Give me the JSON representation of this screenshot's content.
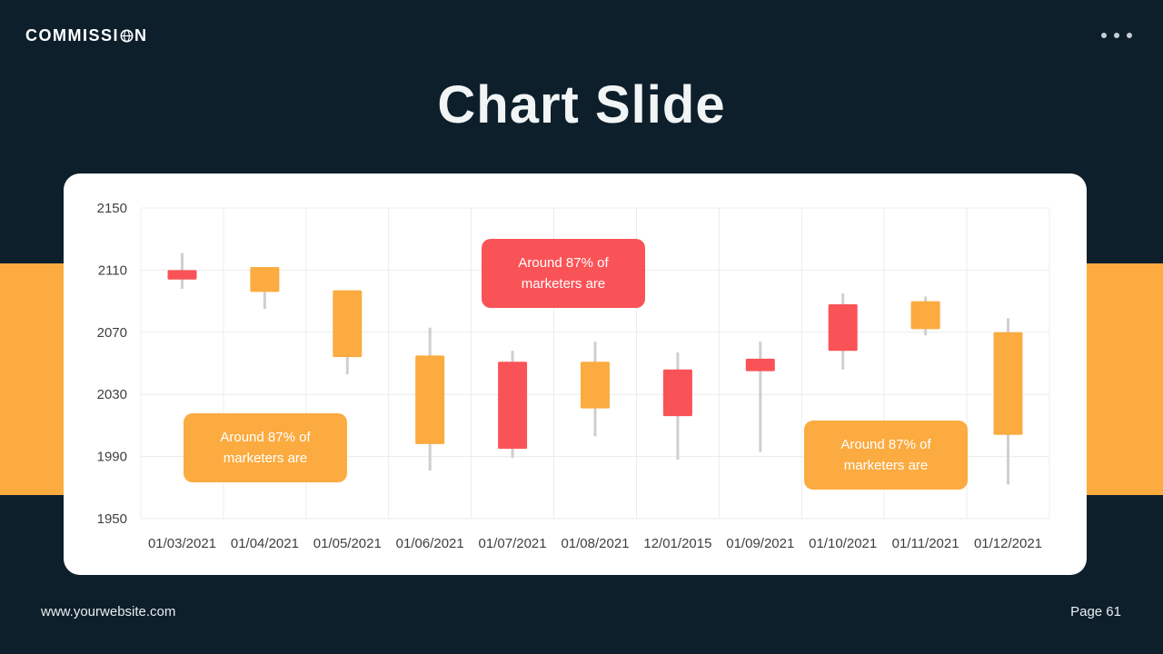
{
  "header": {
    "logo_prefix": "COMMISSI",
    "logo_suffix": "N",
    "menu_icon": "more-options-dots"
  },
  "slide": {
    "title": "Chart Slide"
  },
  "footer": {
    "website": "www.yourwebsite.com",
    "page_label": "Page 61"
  },
  "colors": {
    "background": "#0d1f2b",
    "accent_orange": "#fbab40",
    "accent_red": "#fa5357",
    "card": "#ffffff",
    "wick_gray": "#cfcfcf",
    "grid_gray": "#ececec"
  },
  "callouts": {
    "top": {
      "line1": "Around 87% of",
      "line2": "marketers are"
    },
    "left": {
      "line1": "Around 87% of",
      "line2": "marketers are"
    },
    "right": {
      "line1": "Around 87% of",
      "line2": "marketers are"
    }
  },
  "chart_data": {
    "type": "candlestick",
    "title": "",
    "xlabel": "",
    "ylabel": "",
    "grid": true,
    "legend": false,
    "ylim": [
      1950,
      2150
    ],
    "yticks": [
      2150,
      2110,
      2070,
      2030,
      1990,
      1950
    ],
    "categories": [
      "01/03/2021",
      "01/04/2021",
      "01/05/2021",
      "01/06/2021",
      "01/07/2021",
      "01/08/2021",
      "12/01/2015",
      "01/09/2021",
      "01/10/2021",
      "01/11/2021",
      "01/12/2021"
    ],
    "candles": [
      {
        "open": 2110,
        "close": 2104,
        "high": 2121,
        "low": 2098,
        "direction": "down"
      },
      {
        "open": 2096,
        "close": 2112,
        "high": 2112,
        "low": 2085,
        "direction": "up"
      },
      {
        "open": 2054,
        "close": 2097,
        "high": 2097,
        "low": 2043,
        "direction": "up"
      },
      {
        "open": 1998,
        "close": 2055,
        "high": 2073,
        "low": 1981,
        "direction": "up"
      },
      {
        "open": 2051,
        "close": 1995,
        "high": 2058,
        "low": 1989,
        "direction": "down"
      },
      {
        "open": 2021,
        "close": 2051,
        "high": 2064,
        "low": 2003,
        "direction": "up"
      },
      {
        "open": 2046,
        "close": 2016,
        "high": 2057,
        "low": 1988,
        "direction": "down"
      },
      {
        "open": 2053,
        "close": 2045,
        "high": 2064,
        "low": 1993,
        "direction": "down"
      },
      {
        "open": 2088,
        "close": 2058,
        "high": 2095,
        "low": 2046,
        "direction": "down"
      },
      {
        "open": 2072,
        "close": 2090,
        "high": 2093,
        "low": 2068,
        "direction": "up"
      },
      {
        "open": 2004,
        "close": 2070,
        "high": 2079,
        "low": 1972,
        "direction": "up"
      }
    ]
  }
}
